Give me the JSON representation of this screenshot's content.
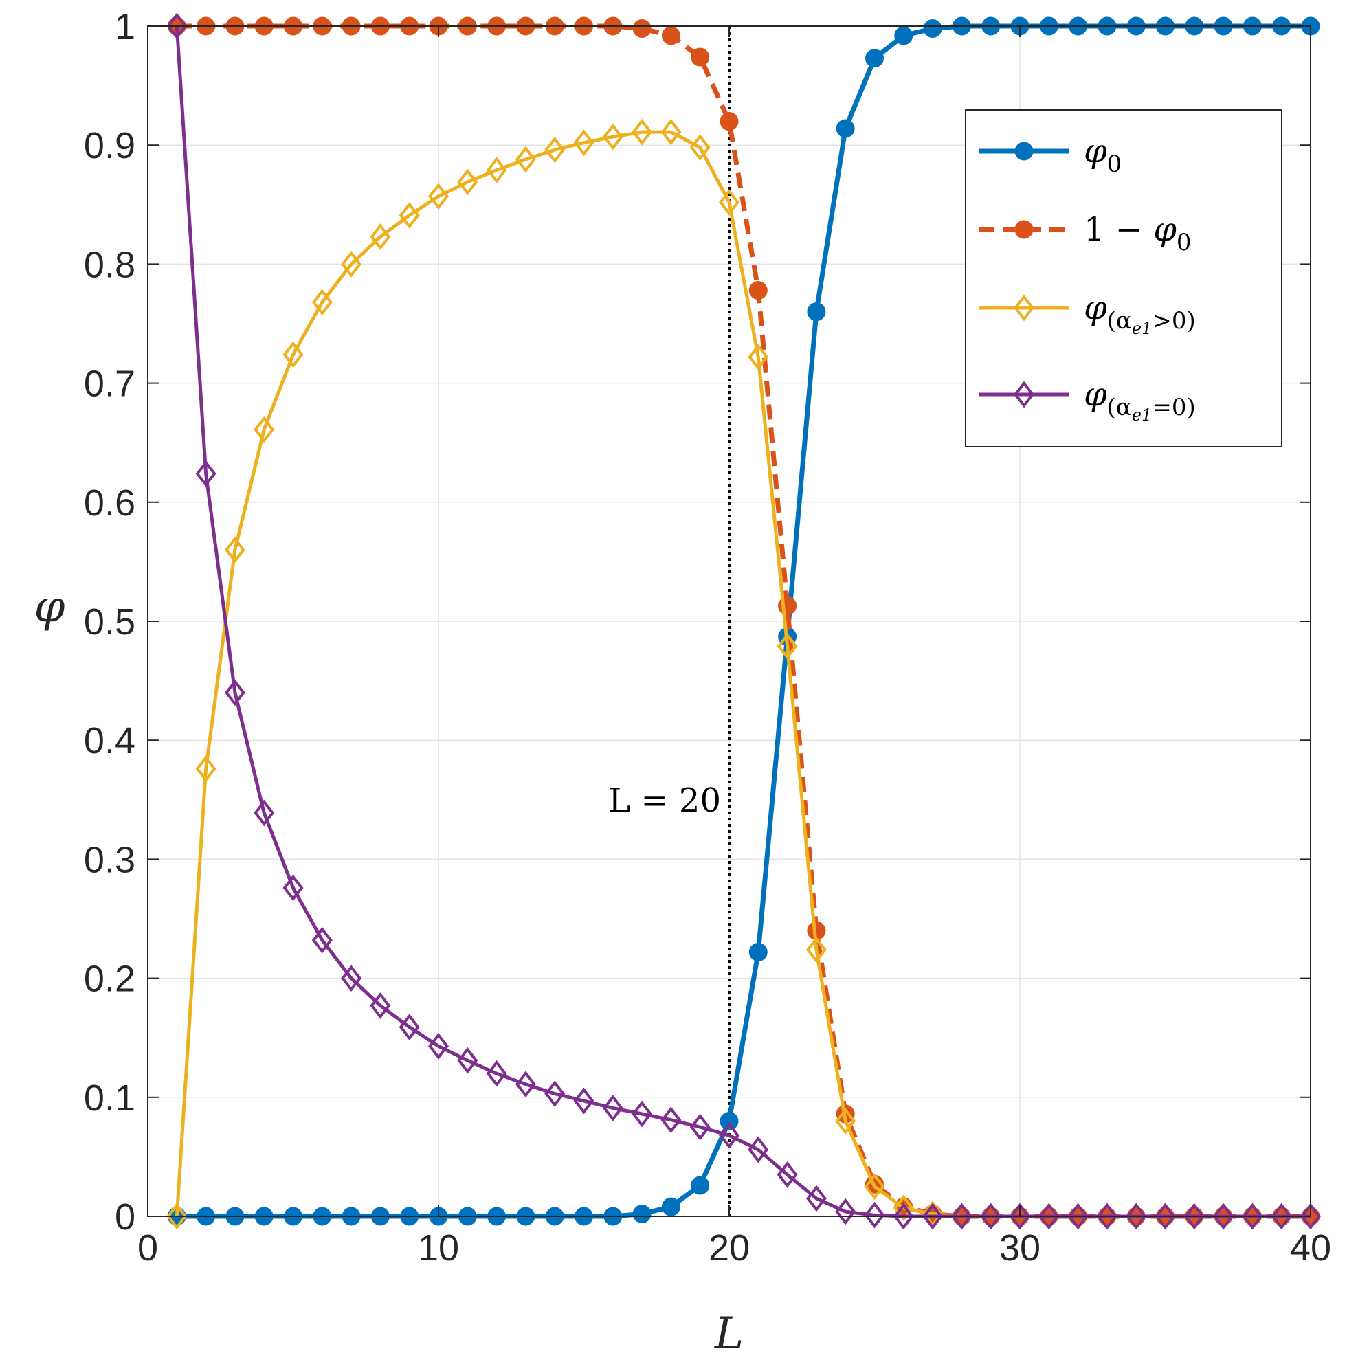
{
  "chart_data": {
    "type": "line",
    "title": "",
    "xlabel": "L",
    "ylabel": "φ",
    "xlim": [
      0,
      40
    ],
    "ylim": [
      0,
      1
    ],
    "xticks": [
      0,
      10,
      20,
      30,
      40
    ],
    "yticks": [
      0,
      0.1,
      0.2,
      0.3,
      0.4,
      0.5,
      0.6,
      0.7,
      0.8,
      0.9,
      1
    ],
    "xtick_labels": [
      "0",
      "10",
      "20",
      "30",
      "40"
    ],
    "ytick_labels": [
      "0",
      "0.1",
      "0.2",
      "0.3",
      "0.4",
      "0.5",
      "0.6",
      "0.7",
      "0.8",
      "0.9",
      "1"
    ],
    "grid": true,
    "legend_position": "top-right",
    "x": [
      1,
      2,
      3,
      4,
      5,
      6,
      7,
      8,
      9,
      10,
      11,
      12,
      13,
      14,
      15,
      16,
      17,
      18,
      19,
      20,
      21,
      22,
      23,
      24,
      25,
      26,
      27,
      28,
      29,
      30,
      31,
      32,
      33,
      34,
      35,
      36,
      37,
      38,
      39,
      40
    ],
    "series": [
      {
        "name": "phi_0",
        "legend_main": "φ",
        "legend_sub": "0",
        "legend_prefix": "",
        "color": "#0072BD",
        "marker": "circle",
        "line_style": "solid",
        "values": [
          0,
          0,
          0,
          0,
          0,
          0,
          0,
          0,
          0,
          0,
          0,
          0,
          0,
          0,
          0,
          0,
          0.002,
          0.008,
          0.026,
          0.08,
          0.222,
          0.487,
          0.76,
          0.914,
          0.973,
          0.992,
          0.998,
          1,
          1,
          1,
          1,
          1,
          1,
          1,
          1,
          1,
          1,
          1,
          1,
          1
        ]
      },
      {
        "name": "1-phi_0",
        "legend_main": "φ",
        "legend_sub": "0",
        "legend_prefix": "1 − ",
        "color": "#D95319",
        "marker": "circle",
        "line_style": "dashed",
        "values": [
          1,
          1,
          1,
          1,
          1,
          1,
          1,
          1,
          1,
          1,
          1,
          1,
          1,
          1,
          1,
          1,
          0.998,
          0.992,
          0.974,
          0.92,
          0.778,
          0.513,
          0.24,
          0.086,
          0.027,
          0.008,
          0.002,
          0,
          0,
          0,
          0,
          0,
          0,
          0,
          0,
          0,
          0,
          0,
          0,
          0
        ]
      },
      {
        "name": "phi_(alpha_e1>0)",
        "legend_main": "φ",
        "legend_sub": "(α",
        "legend_subsub": "e1",
        "legend_subtail": ">0)",
        "legend_prefix": "",
        "color": "#EDB120",
        "marker": "diamond",
        "line_style": "solid",
        "values": [
          0,
          0.376,
          0.56,
          0.661,
          0.724,
          0.768,
          0.8,
          0.823,
          0.841,
          0.857,
          0.869,
          0.879,
          0.888,
          0.896,
          0.902,
          0.907,
          0.911,
          0.911,
          0.898,
          0.852,
          0.722,
          0.479,
          0.224,
          0.08,
          0.025,
          0.007,
          0.002,
          0,
          0,
          0,
          0,
          0,
          0,
          0,
          0,
          0,
          0,
          0,
          0,
          0
        ]
      },
      {
        "name": "phi_(alpha_e1=0)",
        "legend_main": "φ",
        "legend_sub": "(α",
        "legend_subsub": "e1",
        "legend_subtail": "=0)",
        "legend_prefix": "",
        "color": "#7E2F8E",
        "marker": "diamond",
        "line_style": "solid",
        "values": [
          1,
          0.624,
          0.44,
          0.339,
          0.276,
          0.232,
          0.2,
          0.177,
          0.159,
          0.143,
          0.131,
          0.12,
          0.111,
          0.103,
          0.097,
          0.091,
          0.086,
          0.081,
          0.075,
          0.068,
          0.056,
          0.035,
          0.015,
          0.004,
          0.001,
          0,
          0,
          0,
          0,
          0,
          0,
          0,
          0,
          0,
          0,
          0,
          0,
          0,
          0,
          0
        ]
      }
    ],
    "annotations": [
      {
        "text": "L = 20",
        "x": 20,
        "y": 0.35,
        "type": "vertical-line",
        "line_style": "dotted",
        "color": "#000000"
      }
    ]
  }
}
